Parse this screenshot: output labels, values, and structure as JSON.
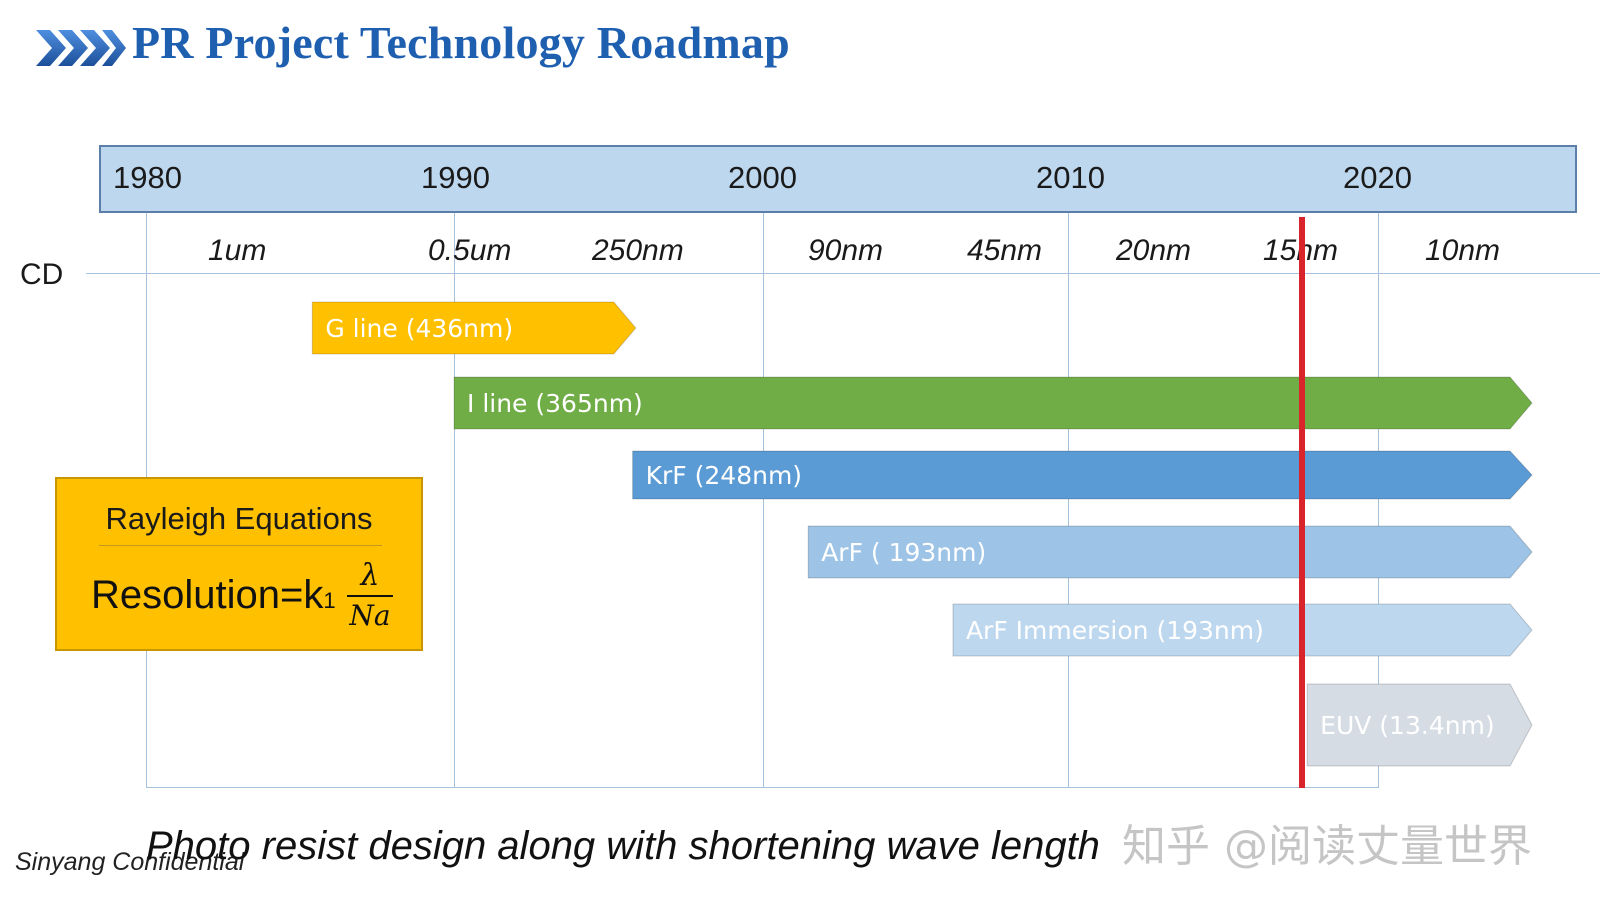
{
  "title": "PR Project Technology Roadmap",
  "colors": {
    "title": "#1f5fb0",
    "timeline_band": "#bdd7ee",
    "g_line": "#ffc000",
    "i_line": "#70ad47",
    "krf": "#5b9bd5",
    "arf": "#9dc3e6",
    "arf_immersion": "#bdd7ee",
    "euv": "#d6dce4",
    "current_marker": "#d9242b",
    "rayleigh_box": "#ffc000"
  },
  "timeline": {
    "years": [
      "1980",
      "1990",
      "2000",
      "2010",
      "2020"
    ]
  },
  "cd": {
    "label": "CD",
    "values": [
      "1um",
      "0.5um",
      "250nm",
      "90nm",
      "45nm",
      "20nm",
      "15nm",
      "10nm"
    ]
  },
  "technologies": [
    {
      "name": "G line (436nm)",
      "start": 1985.4,
      "end": 1995.9,
      "color": "#ffc000",
      "text_color": "#ffffff"
    },
    {
      "name": "I line (365nm)",
      "start": 1990.0,
      "end": 2025.0,
      "color": "#70ad47",
      "text_color": "#ffffff"
    },
    {
      "name": "KrF (248nm)",
      "start": 1995.8,
      "end": 2025.0,
      "color": "#5b9bd5",
      "text_color": "#ffffff"
    },
    {
      "name": "ArF ( 193nm)",
      "start": 2001.5,
      "end": 2025.0,
      "color": "#9dc3e6",
      "text_color": "#ffffff"
    },
    {
      "name": "ArF  Immersion (193nm)",
      "start": 2006.2,
      "end": 2025.0,
      "color": "#bdd7ee",
      "text_color": "#ffffff"
    },
    {
      "name": "EUV  (13.4nm)",
      "start": 2017.7,
      "end": 2025.0,
      "color": "#d6dce4",
      "text_color": "#ffffff"
    }
  ],
  "current_year_marker": 2017.5,
  "rayleigh": {
    "title": "Rayleigh Equations",
    "formula_prefix": "Resolution=k",
    "formula_subscript": "1",
    "numerator": "λ",
    "denominator": "Na"
  },
  "caption": "Photo resist design along with shortening wave length",
  "confidential": "Sinyang Confidential",
  "watermark": "知乎 @阅读丈量世界"
}
